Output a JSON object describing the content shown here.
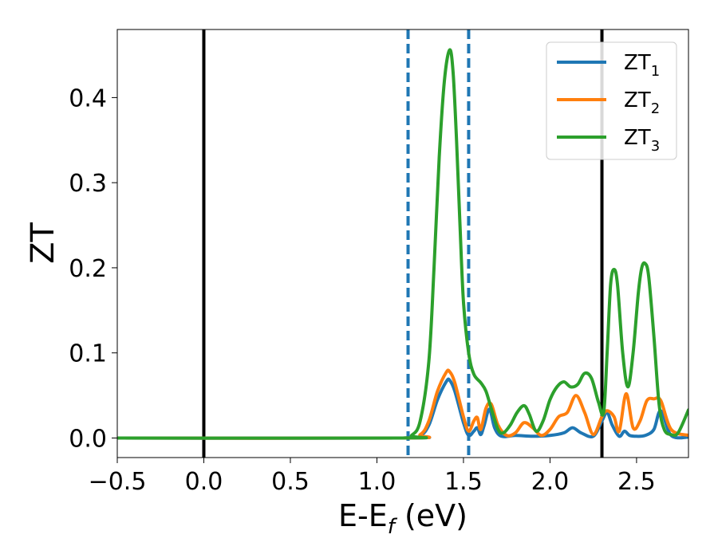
{
  "chart_data": {
    "type": "line",
    "xlabel": "E-E",
    "xlabel_sub": "f",
    "xlabel_unit": " (eV)",
    "ylabel": "ZT",
    "xlim": [
      -0.5,
      2.8
    ],
    "ylim": [
      -0.023,
      0.48
    ],
    "xticks": [
      -0.5,
      0.0,
      0.5,
      1.0,
      1.5,
      2.0,
      2.5
    ],
    "xtick_labels": [
      "−0.5",
      "0.0",
      "0.5",
      "1.0",
      "1.5",
      "2.0",
      "2.5"
    ],
    "yticks": [
      0.0,
      0.1,
      0.2,
      0.3,
      0.4
    ],
    "ytick_labels": [
      "0.0",
      "0.1",
      "0.2",
      "0.3",
      "0.4"
    ],
    "grid": false,
    "legend_position": "top-right",
    "vlines": [
      {
        "x": 0.0,
        "style": "solid",
        "color": "#000000"
      },
      {
        "x": 2.3,
        "style": "solid",
        "color": "#000000"
      },
      {
        "x": 1.18,
        "style": "dashed",
        "color": "#1f77b4"
      },
      {
        "x": 1.53,
        "style": "dashed",
        "color": "#1f77b4"
      }
    ],
    "series": [
      {
        "name": "ZT",
        "sub": "1",
        "color": "#1f77b4",
        "x": [
          -0.5,
          1.15,
          1.25,
          1.3,
          1.35,
          1.4,
          1.42,
          1.45,
          1.5,
          1.53,
          1.56,
          1.58,
          1.6,
          1.62,
          1.65,
          1.68,
          1.72,
          1.8,
          1.9,
          2.0,
          2.08,
          2.13,
          2.18,
          2.25,
          2.3,
          2.33,
          2.36,
          2.4,
          2.43,
          2.46,
          2.5,
          2.55,
          2.6,
          2.64,
          2.7,
          2.8
        ],
        "y": [
          0.0,
          0.0,
          0.003,
          0.015,
          0.045,
          0.066,
          0.068,
          0.055,
          0.018,
          0.003,
          0.008,
          0.012,
          0.004,
          0.015,
          0.034,
          0.012,
          0.002,
          0.003,
          0.002,
          0.003,
          0.006,
          0.012,
          0.006,
          0.002,
          0.02,
          0.03,
          0.015,
          0.002,
          0.008,
          0.003,
          0.002,
          0.003,
          0.01,
          0.032,
          0.003,
          0.001
        ]
      },
      {
        "name": "ZT",
        "sub": "2",
        "color": "#ff7f0e",
        "x": [
          -0.5,
          1.15,
          1.25,
          1.3,
          1.35,
          1.4,
          1.42,
          1.45,
          1.5,
          1.53,
          1.56,
          1.58,
          1.6,
          1.63,
          1.66,
          1.7,
          1.75,
          1.8,
          1.85,
          1.9,
          1.95,
          2.0,
          2.05,
          2.1,
          2.15,
          2.2,
          2.25,
          2.3,
          2.33,
          2.37,
          2.4,
          2.44,
          2.48,
          2.52,
          2.56,
          2.6,
          2.64,
          2.7,
          2.8
        ],
        "y": [
          0.0,
          0.0,
          0.004,
          0.02,
          0.055,
          0.077,
          0.078,
          0.065,
          0.025,
          0.008,
          0.02,
          0.024,
          0.01,
          0.035,
          0.04,
          0.015,
          0.003,
          0.006,
          0.018,
          0.012,
          0.003,
          0.01,
          0.025,
          0.03,
          0.05,
          0.03,
          0.004,
          0.025,
          0.032,
          0.025,
          0.008,
          0.052,
          0.012,
          0.02,
          0.044,
          0.046,
          0.044,
          0.01,
          0.003
        ]
      },
      {
        "name": "ZT",
        "sub": "3",
        "color": "#2ca02c",
        "x": [
          -0.5,
          1.15,
          1.2,
          1.25,
          1.3,
          1.33,
          1.36,
          1.39,
          1.42,
          1.44,
          1.46,
          1.48,
          1.5,
          1.53,
          1.56,
          1.6,
          1.63,
          1.66,
          1.7,
          1.73,
          1.77,
          1.81,
          1.85,
          1.88,
          1.92,
          1.96,
          2.0,
          2.04,
          2.08,
          2.12,
          2.16,
          2.2,
          2.24,
          2.28,
          2.31,
          2.33,
          2.35,
          2.37,
          2.39,
          2.42,
          2.45,
          2.48,
          2.51,
          2.53,
          2.55,
          2.57,
          2.6,
          2.63,
          2.66,
          2.7,
          2.74,
          2.8
        ],
        "y": [
          0.0,
          0.0,
          0.003,
          0.02,
          0.09,
          0.2,
          0.33,
          0.42,
          0.456,
          0.43,
          0.35,
          0.25,
          0.16,
          0.1,
          0.075,
          0.065,
          0.055,
          0.035,
          0.01,
          0.006,
          0.015,
          0.03,
          0.038,
          0.028,
          0.008,
          0.02,
          0.045,
          0.06,
          0.066,
          0.06,
          0.063,
          0.076,
          0.07,
          0.042,
          0.03,
          0.1,
          0.18,
          0.198,
          0.18,
          0.1,
          0.06,
          0.1,
          0.17,
          0.2,
          0.205,
          0.19,
          0.12,
          0.04,
          0.01,
          0.004,
          0.006,
          0.033
        ]
      }
    ]
  }
}
